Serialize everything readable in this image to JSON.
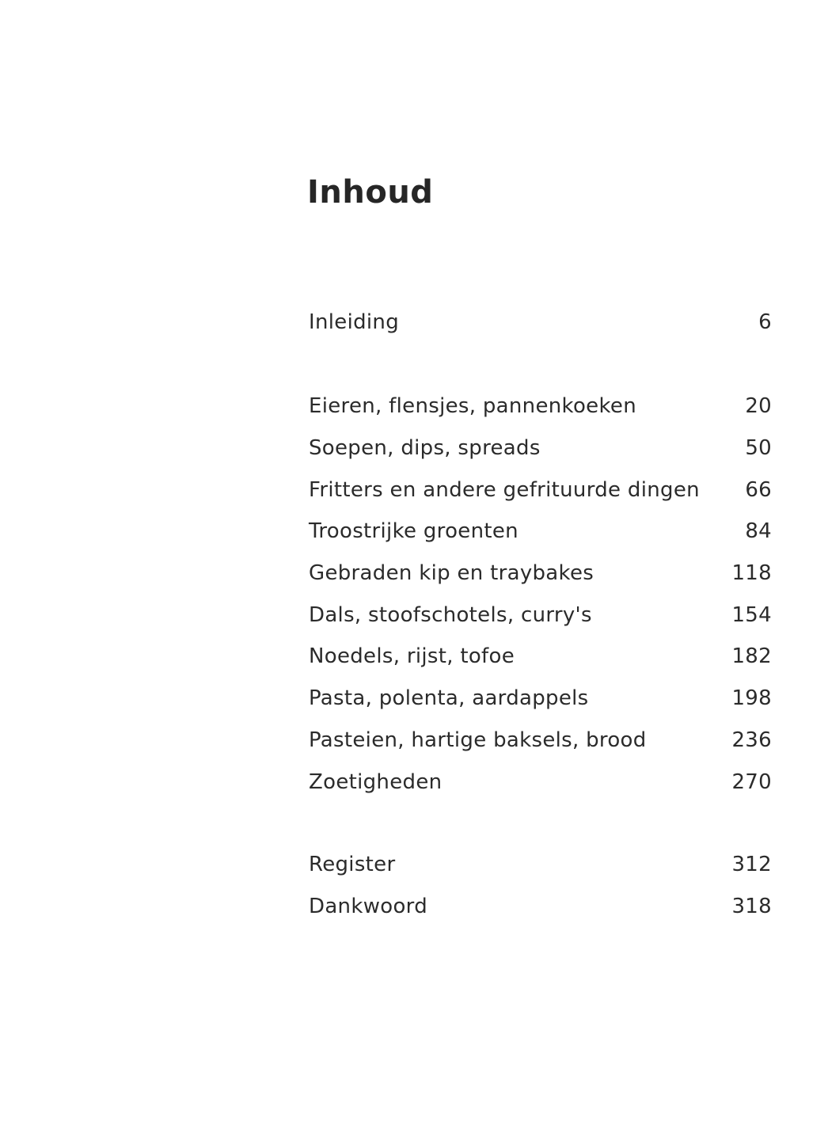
{
  "page": {
    "title": "Inhoud",
    "background_color": "#ffffff",
    "text_color": "#2b2b2b"
  },
  "toc": {
    "groups": [
      {
        "entries": [
          {
            "label": "Inleiding",
            "page": "6"
          }
        ]
      },
      {
        "entries": [
          {
            "label": "Eieren, flensjes, pannenkoeken",
            "page": "20"
          },
          {
            "label": "Soepen, dips, spreads",
            "page": "50"
          },
          {
            "label": "Fritters en andere gefrituurde dingen",
            "page": "66"
          },
          {
            "label": "Troostrijke groenten",
            "page": "84"
          },
          {
            "label": "Gebraden kip en traybakes",
            "page": "118"
          },
          {
            "label": "Dals, stoofschotels, curry's",
            "page": "154"
          },
          {
            "label": "Noedels, rijst, tofoe",
            "page": "182"
          },
          {
            "label": "Pasta, polenta, aardappels",
            "page": "198"
          },
          {
            "label": "Pasteien, hartige baksels, brood",
            "page": "236"
          },
          {
            "label": "Zoetigheden",
            "page": "270"
          }
        ]
      },
      {
        "entries": [
          {
            "label": "Register",
            "page": "312"
          },
          {
            "label": "Dankwoord",
            "page": "318"
          }
        ]
      }
    ]
  }
}
